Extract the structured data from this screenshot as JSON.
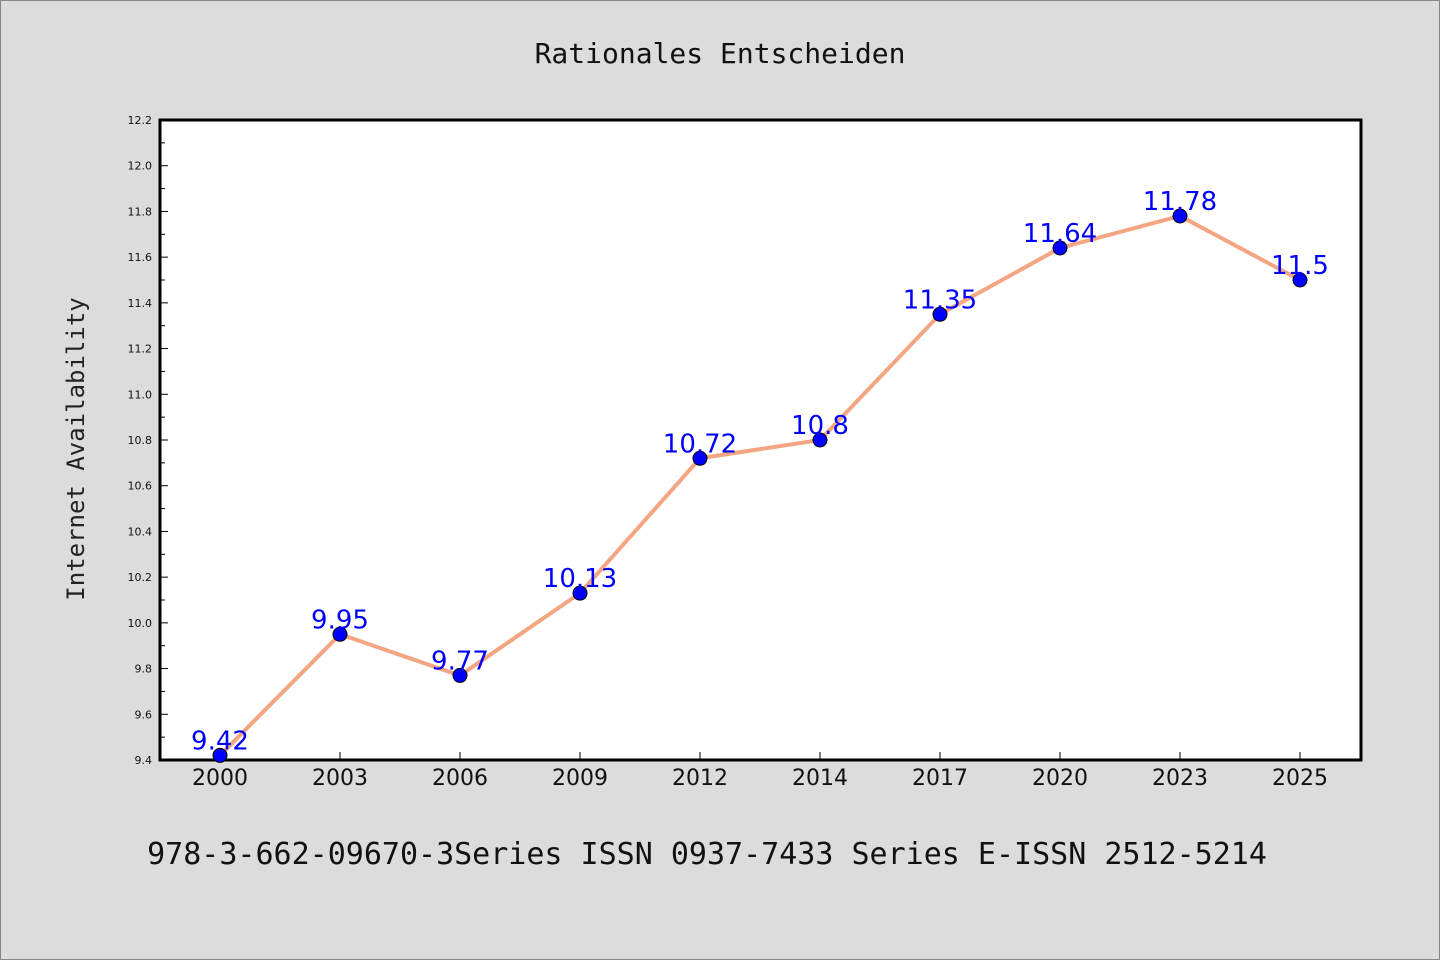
{
  "chart_data": {
    "type": "line",
    "title": "Rationales Entscheiden",
    "xlabel": "",
    "ylabel": "Internet Availability",
    "categories": [
      "2000",
      "2003",
      "2006",
      "2009",
      "2012",
      "2014",
      "2017",
      "2020",
      "2023",
      "2025"
    ],
    "series": [
      {
        "values": [
          9.42,
          9.95,
          9.77,
          10.13,
          10.72,
          10.8,
          11.35,
          11.64,
          11.78,
          11.5
        ],
        "labels": [
          "9.42",
          "9.95",
          "9.77",
          "10.13",
          "10.72",
          "10.8",
          "11.35",
          "11.64",
          "11.78",
          "11.5"
        ],
        "line_color": "#f4a582",
        "marker_color": "#0000ff"
      }
    ],
    "ylim": [
      9.4,
      12.2
    ],
    "yticks": [
      "9.4",
      "9.6",
      "9.8",
      "10.0",
      "10.2",
      "10.4",
      "10.6",
      "10.8",
      "11.0",
      "11.2",
      "11.4",
      "11.6",
      "11.8",
      "12.0",
      "12.2"
    ],
    "grid": false,
    "caption": "978-3-662-09670-3Series ISSN 0937-7433 Series E-ISSN 2512-5214",
    "background_color": "#dcdcdc",
    "plot_background_color": "#ffffff"
  }
}
